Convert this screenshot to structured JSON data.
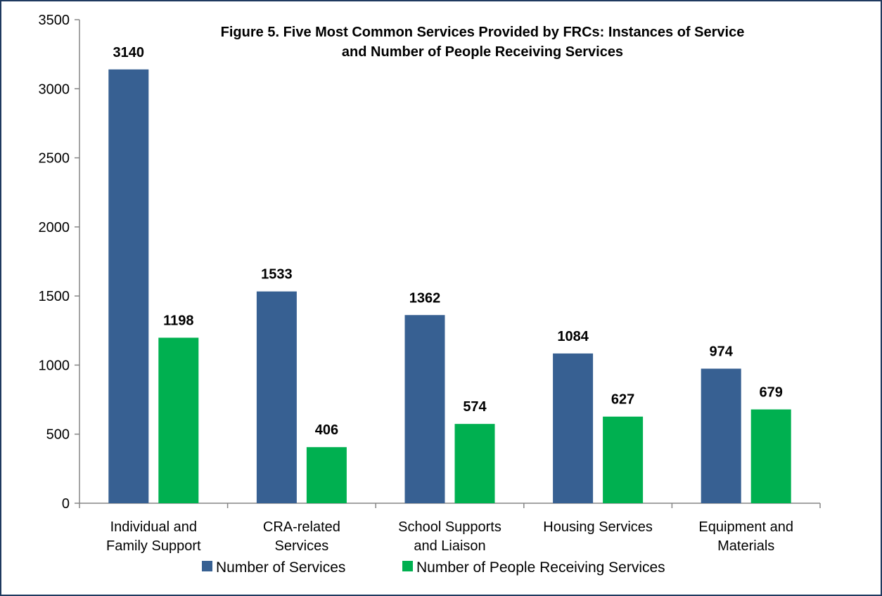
{
  "chart_data": {
    "type": "bar",
    "title_lines": [
      "Figure 5.  Five Most Common Services Provided by FRCs: Instances of Service",
      "and Number of People Receiving Services"
    ],
    "categories": [
      [
        "Individual and",
        "Family Support"
      ],
      [
        "CRA-related",
        "Services"
      ],
      [
        "School Supports",
        "and Liaison"
      ],
      [
        "Housing Services"
      ],
      [
        "Equipment and",
        "Materials"
      ]
    ],
    "series": [
      {
        "name": "Number of Services",
        "color": "#376092",
        "values": [
          3140,
          1533,
          1362,
          1084,
          974
        ]
      },
      {
        "name": "Number of People Receiving Services",
        "color": "#00b050",
        "values": [
          1198,
          406,
          574,
          627,
          679
        ]
      }
    ],
    "ylim": [
      0,
      3500
    ],
    "yticks": [
      0,
      500,
      1000,
      1500,
      2000,
      2500,
      3000,
      3500
    ],
    "xlabel": "",
    "ylabel": "",
    "grid": false,
    "legend_position": "bottom"
  }
}
